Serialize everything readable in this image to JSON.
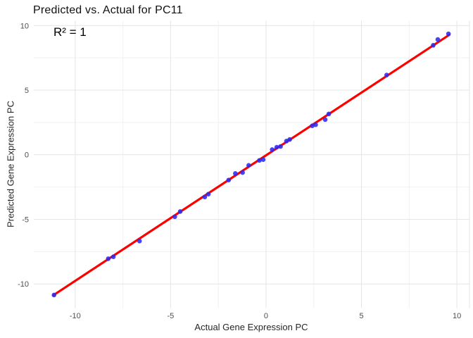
{
  "figure": {
    "title": "Predicted vs. Actual for PC11",
    "annotation": "R² = 1",
    "x_axis": {
      "title": "Actual Gene Expression PC",
      "ticks": [
        "-10",
        "-5",
        "0",
        "5",
        "10"
      ]
    },
    "y_axis": {
      "title": "Predicted Gene Expression PC",
      "ticks": [
        "10",
        "5",
        "0",
        "-5",
        "-10"
      ]
    }
  },
  "colors": {
    "point": "#2b2bf0",
    "fit_line": "#ff0000",
    "grid_major": "#e5e5e5",
    "grid_minor": "#f0f0f0",
    "tick_label": "#4d4d4d",
    "background": "#ffffff"
  },
  "chart_data": {
    "type": "scatter",
    "title": "Predicted vs. Actual for PC11",
    "xlabel": "Actual Gene Expression PC",
    "ylabel": "Predicted Gene Expression PC",
    "annotation": "R² = 1",
    "r_squared": 1,
    "grid": true,
    "legend": false,
    "xlim": [
      -12.17,
      10.66
    ],
    "ylim": [
      -11.87,
      10.37
    ],
    "x_ticks": [
      -10,
      -5,
      0,
      5,
      10
    ],
    "y_ticks": [
      -10,
      -5,
      0,
      5,
      10
    ],
    "x_minor_ticks": [
      -7.5,
      -2.5,
      2.5,
      7.5
    ],
    "y_minor_ticks": [
      -7.5,
      -2.5,
      2.5,
      7.5
    ],
    "points": [
      [
        -11.11,
        -10.86
      ],
      [
        -8.27,
        -8.05
      ],
      [
        -8.0,
        -7.9
      ],
      [
        -6.63,
        -6.68
      ],
      [
        -4.78,
        -4.8
      ],
      [
        -4.5,
        -4.4
      ],
      [
        -3.21,
        -3.27
      ],
      [
        -3.02,
        -3.05
      ],
      [
        -1.96,
        -1.96
      ],
      [
        -1.61,
        -1.45
      ],
      [
        -1.23,
        -1.38
      ],
      [
        -0.91,
        -0.82
      ],
      [
        -0.35,
        -0.44
      ],
      [
        -0.15,
        -0.38
      ],
      [
        0.32,
        0.4
      ],
      [
        0.56,
        0.58
      ],
      [
        0.76,
        0.64
      ],
      [
        1.07,
        1.06
      ],
      [
        1.24,
        1.18
      ],
      [
        2.42,
        2.24
      ],
      [
        2.6,
        2.32
      ],
      [
        3.1,
        2.72
      ],
      [
        3.29,
        3.16
      ],
      [
        6.32,
        6.17
      ],
      [
        8.76,
        8.47
      ],
      [
        9.0,
        8.92
      ],
      [
        9.56,
        9.36
      ]
    ],
    "fit_line": {
      "x1": -11.14,
      "y1": -10.87,
      "x2": 9.6,
      "y2": 9.28
    }
  }
}
